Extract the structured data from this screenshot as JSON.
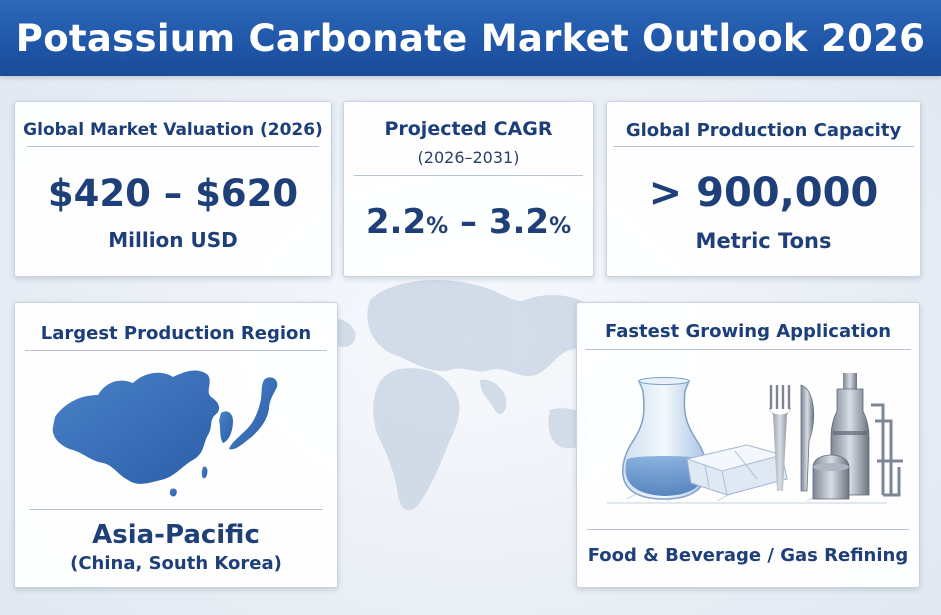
{
  "header": {
    "title": "Potassium Carbonate Market Outlook 2026"
  },
  "cards": {
    "valuation": {
      "title": "Global Market Valuation (2026)",
      "value": "$420 – $620",
      "unit": "Million USD"
    },
    "cagr": {
      "title": "Projected CAGR",
      "subtitle": "(2026–2031)",
      "value_low": "2.2",
      "value_high": "3.2",
      "percent": "%",
      "sep": "–"
    },
    "capacity": {
      "title": "Global Production Capacity",
      "value": "> 900,000",
      "unit": "Metric Tons"
    },
    "region": {
      "title": "Largest Production Region",
      "name": "Asia-Pacific",
      "detail": "(China, South Korea)",
      "map_icon": "east-asia-map-icon"
    },
    "application": {
      "title": "Fastest Growing Application",
      "name": "Food & Beverage / Gas Refining",
      "illustration_icon": "lab-food-refinery-icon"
    }
  },
  "colors": {
    "header_blue": "#2160b0",
    "text_navy": "#1e3f78",
    "map_blue": "#3d72b8"
  }
}
